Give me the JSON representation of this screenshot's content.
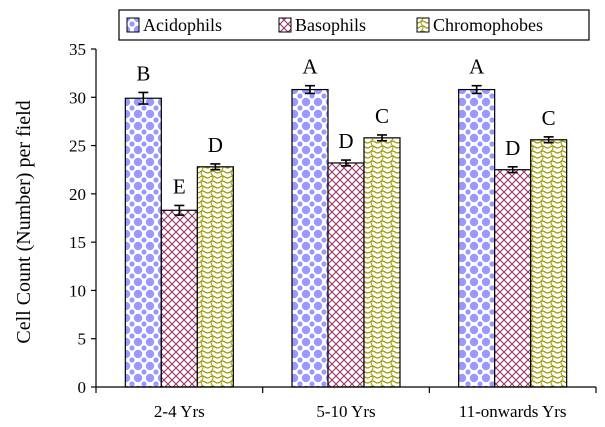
{
  "chart_data": {
    "type": "bar",
    "title": "",
    "xlabel": "",
    "ylabel": "Cell Count (Number) per field",
    "ylim": [
      0,
      35
    ],
    "yticks": [
      0,
      5,
      10,
      15,
      20,
      25,
      30,
      35
    ],
    "grid": false,
    "legend_position": "top",
    "categories": [
      "2-4 Yrs",
      "5-10 Yrs",
      "11-onwards Yrs"
    ],
    "series": [
      {
        "name": "Acidophils",
        "values": [
          29.9,
          30.8,
          30.8
        ],
        "errors": [
          0.6,
          0.4,
          0.4
        ],
        "letters": [
          "B",
          "A",
          "A"
        ],
        "color": "#9999ff",
        "pattern": "dots"
      },
      {
        "name": "Basophils",
        "values": [
          18.3,
          23.2,
          22.5
        ],
        "errors": [
          0.5,
          0.3,
          0.3
        ],
        "letters": [
          "E",
          "D",
          "D"
        ],
        "color": "#993366",
        "pattern": "crosshatch"
      },
      {
        "name": "Chromophobes",
        "values": [
          22.8,
          25.8,
          25.6
        ],
        "errors": [
          0.3,
          0.3,
          0.3
        ],
        "letters": [
          "D",
          "C",
          "C"
        ],
        "color": "#999900",
        "pattern": "waves"
      }
    ]
  }
}
